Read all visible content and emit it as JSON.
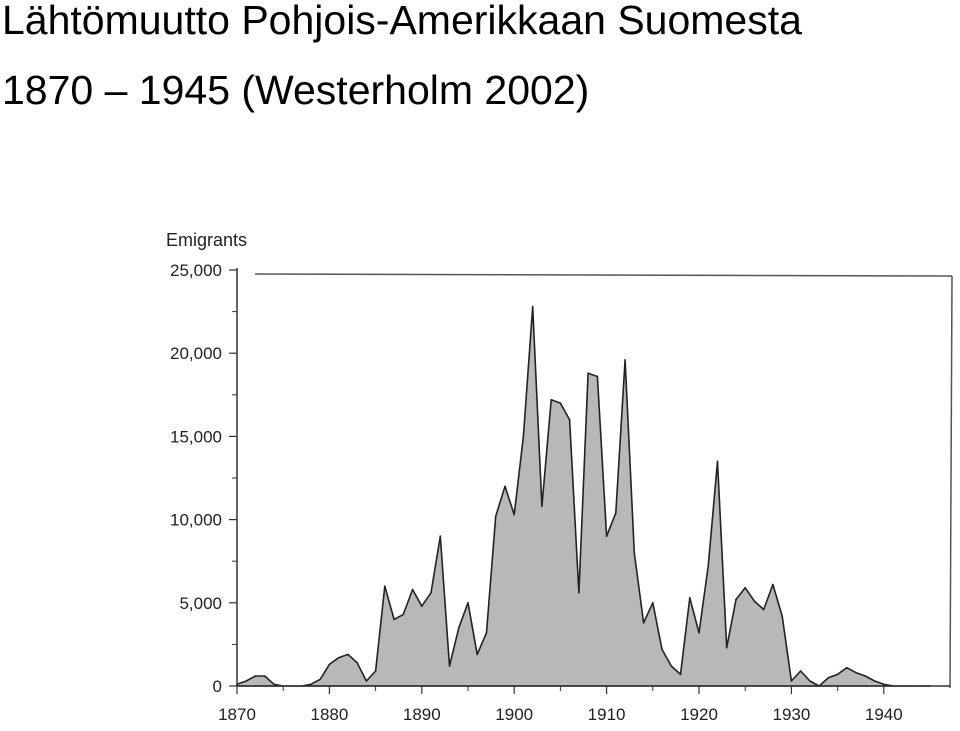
{
  "page": {
    "title_line_1": "Lähtömuutto Pohjois-Amerikkaan Suomesta",
    "title_line_2": "1870 – 1945 (Westerholm 2002)"
  },
  "colors": {
    "area_fill": "#b8b8b8",
    "area_stroke": "#222222",
    "axis": "#333333",
    "frame": "#555555"
  },
  "chart_data": {
    "type": "area",
    "title": "",
    "xlabel": "",
    "ylabel": "Emigrants",
    "xlim": [
      1870,
      1945
    ],
    "ylim": [
      0,
      25000
    ],
    "grid": false,
    "legend": "none",
    "x_ticks": [
      1870,
      1880,
      1890,
      1900,
      1910,
      1920,
      1930,
      1940
    ],
    "x_tick_labels": [
      "1870",
      "1880",
      "1890",
      "1900",
      "1910",
      "1920",
      "1930",
      "1940"
    ],
    "y_ticks": [
      0,
      5000,
      10000,
      15000,
      20000,
      25000
    ],
    "y_tick_labels": [
      "0",
      "5,000",
      "10,000",
      "15,000",
      "20,000",
      "25,000"
    ],
    "series": [
      {
        "x": [
          1870,
          1871,
          1872,
          1873,
          1874,
          1875,
          1876,
          1877,
          1878,
          1879,
          1880,
          1881,
          1882,
          1883,
          1884,
          1885,
          1886,
          1887,
          1888,
          1889,
          1890,
          1891,
          1892,
          1893,
          1894,
          1895,
          1896,
          1897,
          1898,
          1899,
          1900,
          1901,
          1902,
          1903,
          1904,
          1905,
          1906,
          1907,
          1908,
          1909,
          1910,
          1911,
          1912,
          1913,
          1914,
          1915,
          1916,
          1917,
          1918,
          1919,
          1920,
          1921,
          1922,
          1923,
          1924,
          1925,
          1926,
          1927,
          1928,
          1929,
          1930,
          1931,
          1932,
          1933,
          1934,
          1935,
          1936,
          1937,
          1938,
          1939,
          1940,
          1941,
          1942,
          1943,
          1944,
          1945
        ],
        "values": [
          100,
          300,
          600,
          600,
          100,
          0,
          0,
          0,
          100,
          400,
          1300,
          1700,
          1900,
          1400,
          300,
          900,
          6000,
          4000,
          4300,
          5800,
          4800,
          5600,
          9000,
          1200,
          3500,
          5000,
          1900,
          3200,
          10200,
          12000,
          10300,
          15000,
          22800,
          10800,
          17200,
          17000,
          16000,
          5600,
          18800,
          18600,
          9000,
          10400,
          19600,
          8000,
          3800,
          5000,
          2200,
          1200,
          700,
          5300,
          3200,
          7200,
          13500,
          2300,
          5200,
          5900,
          5100,
          4600,
          6100,
          4200,
          300,
          900,
          300,
          0,
          500,
          700,
          1100,
          800,
          600,
          300,
          100,
          0,
          0,
          0,
          0,
          0
        ]
      }
    ]
  }
}
